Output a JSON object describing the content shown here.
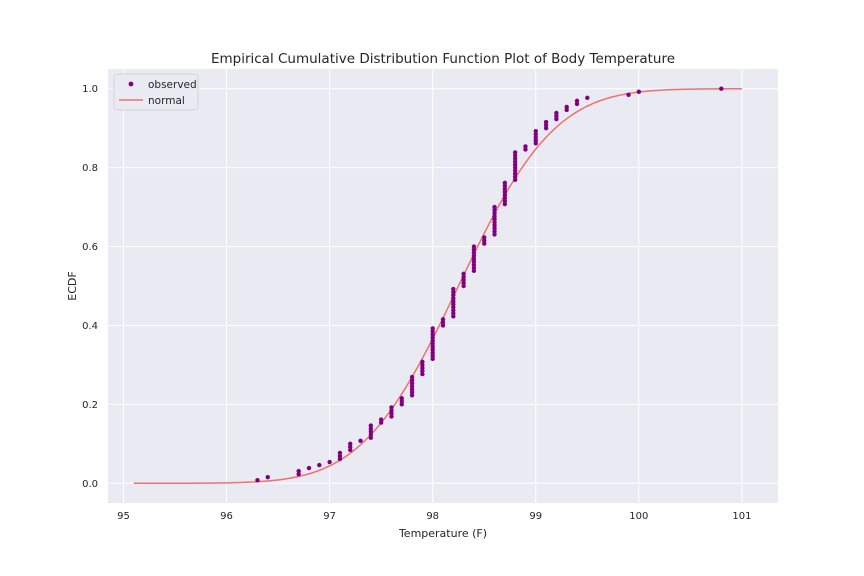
{
  "chart_data": {
    "type": "scatter",
    "title": "Empirical Cumulative Distribution Function Plot of Body Temperature",
    "xlabel": "Temperature (F)",
    "ylabel": "ECDF",
    "xlim": [
      94.85,
      101.35
    ],
    "ylim": [
      -0.05,
      1.05
    ],
    "xticks": [
      95,
      96,
      97,
      98,
      99,
      100,
      101
    ],
    "yticks": [
      0.0,
      0.2,
      0.4,
      0.6,
      0.8,
      1.0
    ],
    "xtick_labels": [
      "95",
      "96",
      "97",
      "98",
      "99",
      "100",
      "101"
    ],
    "ytick_labels": [
      "0.0",
      "0.2",
      "0.4",
      "0.6",
      "0.8",
      "1.0"
    ],
    "grid": true,
    "legend": "top-left",
    "background": "#eaeaf2",
    "series": [
      {
        "name": "observed",
        "kind": "points",
        "color": "#800080",
        "temperature_counts": [
          [
            96.3,
            1
          ],
          [
            96.4,
            1
          ],
          [
            96.7,
            2
          ],
          [
            96.8,
            1
          ],
          [
            96.9,
            1
          ],
          [
            97.0,
            1
          ],
          [
            97.1,
            3
          ],
          [
            97.2,
            3
          ],
          [
            97.3,
            1
          ],
          [
            97.4,
            5
          ],
          [
            97.5,
            2
          ],
          [
            97.6,
            4
          ],
          [
            97.7,
            3
          ],
          [
            97.8,
            7
          ],
          [
            97.9,
            5
          ],
          [
            98.0,
            11
          ],
          [
            98.1,
            3
          ],
          [
            98.2,
            10
          ],
          [
            98.3,
            5
          ],
          [
            98.4,
            9
          ],
          [
            98.5,
            3
          ],
          [
            98.6,
            10
          ],
          [
            98.7,
            8
          ],
          [
            98.8,
            10
          ],
          [
            98.9,
            2
          ],
          [
            99.0,
            5
          ],
          [
            99.1,
            3
          ],
          [
            99.2,
            3
          ],
          [
            99.3,
            2
          ],
          [
            99.4,
            2
          ],
          [
            99.5,
            1
          ],
          [
            99.9,
            1
          ],
          [
            100.0,
            1
          ],
          [
            100.8,
            1
          ]
        ]
      },
      {
        "name": "normal",
        "kind": "line",
        "color": "#f07070",
        "mean": 98.25,
        "std": 0.733,
        "x_range": [
          95.1,
          101.0
        ]
      }
    ]
  }
}
